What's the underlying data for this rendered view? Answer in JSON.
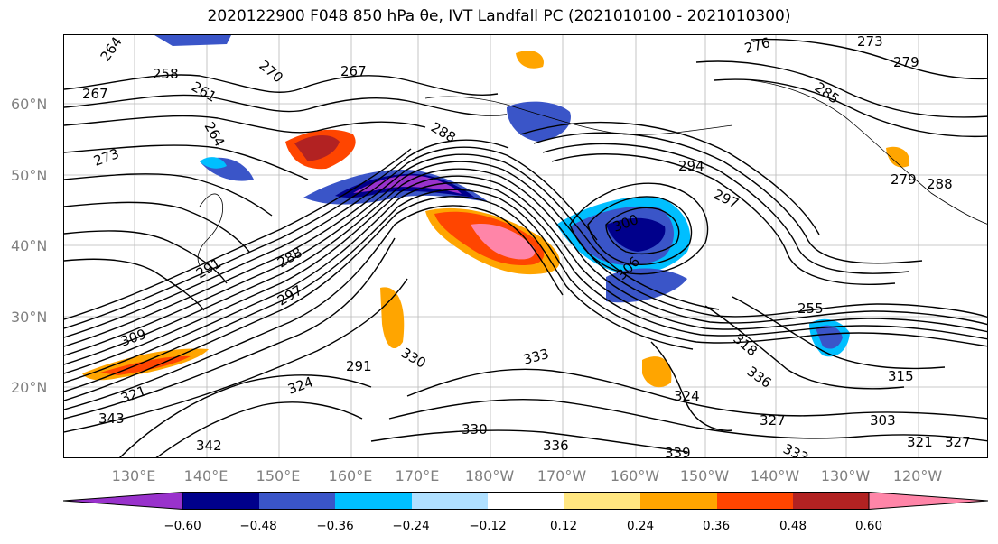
{
  "title": "2020122900 F048 850 hPa θe, IVT Landfall PC (2021010100 - 2021010300)",
  "map": {
    "lat_labels": [
      "60°N",
      "50°N",
      "40°N",
      "30°N",
      "20°N"
    ],
    "lon_labels": [
      "130°E",
      "140°E",
      "150°E",
      "160°E",
      "170°E",
      "180°W",
      "170°W",
      "160°W",
      "150°W",
      "140°W",
      "130°W",
      "120°W"
    ],
    "contour_labels": [
      "264",
      "267",
      "258",
      "261",
      "264",
      "267",
      "270",
      "276",
      "273",
      "279",
      "285",
      "288",
      "294",
      "297",
      "300",
      "306",
      "255",
      "273",
      "279",
      "291",
      "288",
      "297",
      "309",
      "291",
      "330",
      "333",
      "336",
      "318",
      "315",
      "303",
      "321",
      "327",
      "324",
      "339",
      "342",
      "343",
      "336",
      "333",
      "327",
      "330",
      "324",
      "321",
      "288"
    ]
  },
  "colorbar": {
    "colors": [
      "#9932CC",
      "#00008B",
      "#3A55C8",
      "#00BFFF",
      "#B0E0FF",
      "#FFFFFF",
      "#FFE680",
      "#FFA500",
      "#FF4500",
      "#B22222",
      "#FF85A8"
    ],
    "tick_labels": [
      "−0.60",
      "−0.48",
      "−0.36",
      "−0.24",
      "−0.12",
      "0.12",
      "0.24",
      "0.36",
      "0.48",
      "0.60"
    ]
  }
}
